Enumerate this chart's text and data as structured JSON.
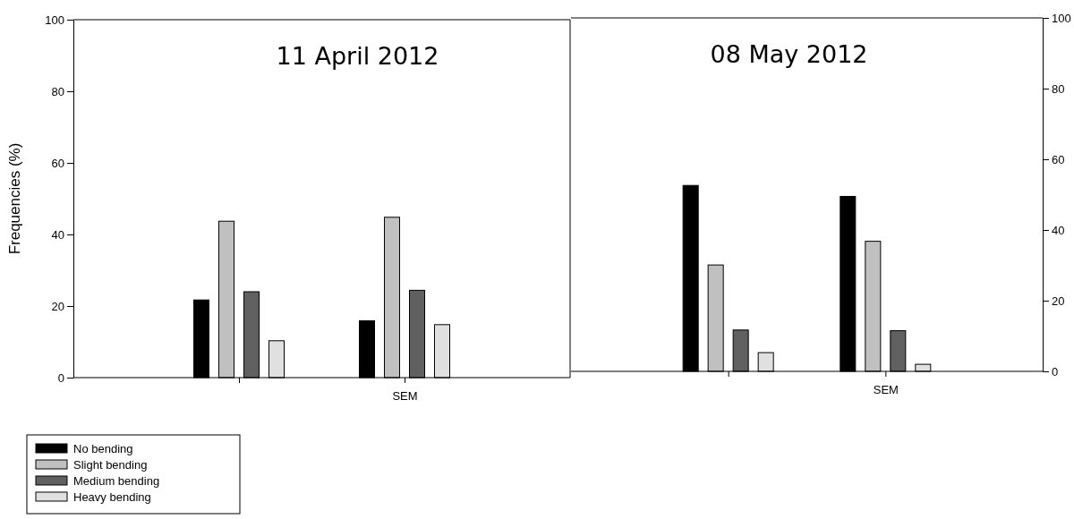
{
  "chart_data": [
    {
      "type": "bar",
      "title": "11 April 2012",
      "ylabel": "Frequencies (%)",
      "categories": [
        null,
        "SEM"
      ],
      "ylim": [
        0,
        100
      ],
      "yticks": [
        0,
        20,
        40,
        60,
        80,
        100
      ],
      "legend": "bottom left",
      "series": [
        {
          "name": "No bending",
          "color": "#000000",
          "values": [
            21.7,
            15.9
          ]
        },
        {
          "name": "Slight bending",
          "color": "#c0c0c0",
          "values": [
            43.7,
            44.8
          ]
        },
        {
          "name": "Medium bending",
          "color": "#606060",
          "values": [
            24.0,
            24.4
          ]
        },
        {
          "name": "Heavy bending",
          "color": "#e0e0e0",
          "values": [
            10.3,
            14.8
          ]
        }
      ]
    },
    {
      "type": "bar",
      "title": "08 May 2012",
      "categories": [
        null,
        "SEM"
      ],
      "ylim": [
        0,
        100
      ],
      "yticks": [
        0,
        20,
        40,
        60,
        80,
        100
      ],
      "series": [
        {
          "color": "#000000",
          "values": [
            52.6,
            49.5
          ]
        },
        {
          "color": "#c0c0c0",
          "values": [
            30.1,
            36.8
          ]
        },
        {
          "color": "#606060",
          "values": [
            11.7,
            11.5
          ]
        },
        {
          "color": "#e0e0e0",
          "values": [
            5.3,
            2.0
          ]
        }
      ]
    }
  ]
}
